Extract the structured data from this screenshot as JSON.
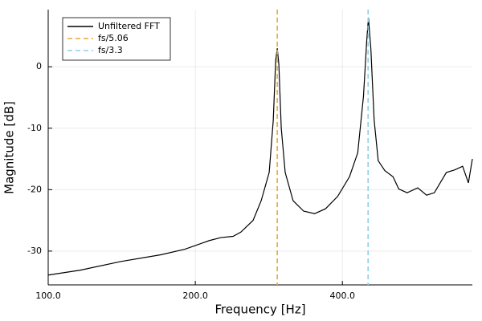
{
  "chart_data": {
    "type": "line",
    "xlabel": "Frequency [Hz]",
    "ylabel": "Magnitude [dB]",
    "xscale": "log",
    "grid": true,
    "legend": "upper left",
    "xlim": [
      100,
      738
    ],
    "ylim": [
      -35.5,
      9.3
    ],
    "xticks": [
      {
        "value": 100,
        "label": "100.0"
      },
      {
        "value": 200,
        "label": "200.0"
      },
      {
        "value": 400,
        "label": "400.0"
      }
    ],
    "yticks": [
      -30,
      -20,
      -10,
      0
    ],
    "series": [
      {
        "name": "Unfiltered FFT",
        "color": "#000000",
        "style": "solid",
        "x": [
          100,
          116.4,
          140.6,
          169.9,
          190.4,
          213.4,
          225.6,
          239,
          248,
          262.6,
          272.8,
          283.3,
          288.8,
          292.1,
          294.3,
          296.5,
          299.9,
          305.5,
          317.1,
          333.3,
          351,
          369.6,
          391.1,
          413.6,
          430,
          441.8,
          448.7,
          452.2,
          457.4,
          464.6,
          473.6,
          488.5,
          507.8,
          521.8,
          542.8,
          570.5,
          594.8,
          617,
          652.9,
          678.4,
          704.9,
          724.4,
          738
        ],
        "values": [
          -33.9,
          -33.1,
          -31.7,
          -30.6,
          -29.7,
          -28.3,
          -27.8,
          -27.6,
          -26.9,
          -25.0,
          -21.8,
          -17.2,
          -8.7,
          1.0,
          3.0,
          0.4,
          -10.0,
          -17.2,
          -21.8,
          -23.5,
          -23.9,
          -23.1,
          -21.1,
          -17.9,
          -14.0,
          -4.8,
          4.3,
          8.0,
          3.0,
          -8.7,
          -15.3,
          -16.9,
          -17.9,
          -19.9,
          -20.5,
          -19.7,
          -20.9,
          -20.5,
          -17.2,
          -16.8,
          -16.2,
          -18.9,
          -15.0
        ]
      },
      {
        "name": "fs/5.06",
        "color": "#e3ac3c",
        "style": "dashed",
        "vline": 294.3
      },
      {
        "name": "fs/3.3",
        "color": "#8fcde6",
        "style": "dashed",
        "vline": 451.5
      }
    ]
  }
}
